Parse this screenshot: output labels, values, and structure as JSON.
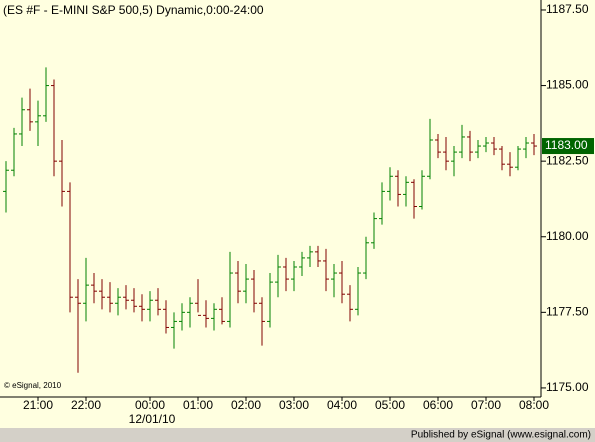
{
  "chart_data": {
    "type": "ohlc",
    "title": "(ES #F - E-MINI S&P 500,5) Dynamic,0:00-24:00",
    "watermark": "© eSignal, 2010",
    "date_label": "12/01/10",
    "footer": "Published by eSignal (www.esignal.com)",
    "up_color": "#008000",
    "down_color": "#800000",
    "categories": [
      null,
      null,
      null,
      null,
      "21:00",
      null,
      null,
      null,
      null,
      null,
      "22:00",
      null,
      null,
      null,
      null,
      null,
      null,
      null,
      "00:00",
      null,
      null,
      null,
      null,
      null,
      "01:00",
      null,
      null,
      null,
      null,
      null,
      "02:00",
      null,
      null,
      null,
      null,
      null,
      "03:00",
      null,
      null,
      null,
      null,
      null,
      "04:00",
      null,
      null,
      null,
      null,
      null,
      "05:00",
      null,
      null,
      null,
      null,
      null,
      "06:00",
      null,
      null,
      null,
      null,
      null,
      "07:00",
      null,
      null,
      null,
      null,
      null,
      "08:00"
    ],
    "open": [
      1181.5,
      1182.2,
      1183.4,
      1184.2,
      1183.8,
      1184.0,
      1185.0,
      1182.5,
      1181.5,
      1178.0,
      1177.8,
      1178.4,
      1178.2,
      1178.0,
      1177.8,
      1178.0,
      1177.9,
      1177.7,
      1177.6,
      1177.9,
      1177.6,
      1177.0,
      1177.2,
      1177.5,
      1177.8,
      1177.4,
      1177.3,
      1177.6,
      1177.2,
      1178.8,
      1178.2,
      1178.6,
      1177.8,
      1177.2,
      1178.5,
      1179.0,
      1178.6,
      1179.0,
      1179.3,
      1179.5,
      1179.2,
      1178.6,
      1178.8,
      1178.1,
      1177.6,
      1178.8,
      1179.8,
      1180.6,
      1181.5,
      1182.0,
      1181.4,
      1181.8,
      1181.0,
      1182.0,
      1183.2,
      1182.8,
      1182.5,
      1182.8,
      1183.3,
      1182.8,
      1183.0,
      1183.1,
      1182.9,
      1182.4,
      1182.3,
      1182.9,
      1183.1
    ],
    "high": [
      1182.5,
      1183.6,
      1184.6,
      1184.9,
      1184.5,
      1185.6,
      1185.2,
      1183.2,
      1181.8,
      1178.6,
      1179.3,
      1178.8,
      1178.6,
      1178.5,
      1178.3,
      1178.4,
      1178.3,
      1178.1,
      1178.2,
      1178.3,
      1177.9,
      1177.5,
      1177.8,
      1178.0,
      1178.6,
      1177.9,
      1177.8,
      1178.0,
      1179.5,
      1179.2,
      1179.1,
      1178.9,
      1178.0,
      1178.8,
      1179.4,
      1179.3,
      1179.2,
      1179.5,
      1179.7,
      1179.7,
      1179.6,
      1179.1,
      1179.2,
      1178.4,
      1179.0,
      1180.0,
      1180.8,
      1181.8,
      1182.3,
      1182.2,
      1182.0,
      1181.9,
      1182.2,
      1183.9,
      1183.4,
      1183.3,
      1183.0,
      1183.7,
      1183.5,
      1183.2,
      1183.3,
      1183.3,
      1183.0,
      1182.8,
      1183.0,
      1183.3,
      1183.4
    ],
    "low": [
      1180.8,
      1182.0,
      1183.0,
      1183.5,
      1183.0,
      1183.8,
      1182.0,
      1181.0,
      1177.5,
      1175.5,
      1177.2,
      1177.8,
      1177.6,
      1177.5,
      1177.4,
      1177.6,
      1177.5,
      1177.2,
      1177.2,
      1177.4,
      1176.8,
      1176.3,
      1176.9,
      1177.0,
      1177.5,
      1177.0,
      1176.9,
      1177.1,
      1177.0,
      1177.8,
      1177.8,
      1177.5,
      1176.4,
      1177.0,
      1178.0,
      1178.2,
      1178.2,
      1178.7,
      1179.0,
      1179.0,
      1178.2,
      1178.0,
      1177.8,
      1177.2,
      1177.4,
      1178.6,
      1179.6,
      1180.4,
      1181.2,
      1181.0,
      1181.0,
      1180.6,
      1180.9,
      1181.9,
      1182.6,
      1182.2,
      1182.0,
      1182.6,
      1182.5,
      1182.6,
      1182.8,
      1182.7,
      1182.2,
      1182.0,
      1182.2,
      1182.6,
      1182.7
    ],
    "close": [
      1182.2,
      1183.4,
      1184.2,
      1183.8,
      1184.0,
      1185.0,
      1182.5,
      1181.5,
      1178.0,
      1177.8,
      1178.4,
      1178.2,
      1178.0,
      1177.8,
      1178.0,
      1177.9,
      1177.7,
      1177.6,
      1177.9,
      1177.6,
      1177.0,
      1177.2,
      1177.5,
      1177.8,
      1177.4,
      1177.3,
      1177.6,
      1177.2,
      1178.8,
      1178.2,
      1178.6,
      1177.8,
      1177.2,
      1178.5,
      1179.0,
      1178.6,
      1179.0,
      1179.3,
      1179.5,
      1179.2,
      1178.6,
      1178.8,
      1178.1,
      1177.6,
      1178.8,
      1179.8,
      1180.6,
      1181.5,
      1182.0,
      1181.4,
      1181.8,
      1181.0,
      1182.0,
      1183.2,
      1182.8,
      1182.5,
      1182.8,
      1183.3,
      1182.8,
      1183.0,
      1183.1,
      1182.9,
      1182.4,
      1182.3,
      1182.9,
      1183.1,
      1183.0
    ],
    "ylim": [
      1174.7,
      1187.83
    ],
    "yticks": [
      {
        "value": 1175,
        "label": "1175.00"
      },
      {
        "value": 1177.5,
        "label": "1177.50"
      },
      {
        "value": 1180,
        "label": "1180.00"
      },
      {
        "value": 1182.5,
        "label": "1182.50"
      },
      {
        "value": 1185,
        "label": "1185.00"
      },
      {
        "value": 1187.5,
        "label": "1187.50"
      }
    ],
    "last_price": {
      "value": 1183,
      "label": "1183.00"
    },
    "last_price_color": "#006400"
  }
}
